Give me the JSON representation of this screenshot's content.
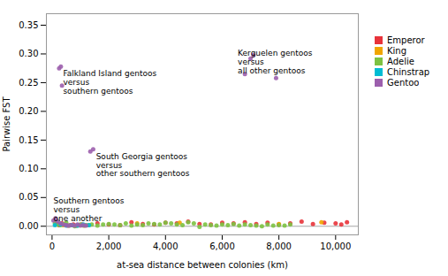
{
  "chart_data": {
    "type": "scatter",
    "xlabel": "at-sea distance between colonies (km)",
    "ylabel": "Pairwise FST",
    "xlim": [
      -200,
      10800
    ],
    "ylim": [
      -0.015,
      0.37
    ],
    "xticks": [
      0,
      {
        "value": 2000,
        "label": "2,000"
      },
      {
        "value": 4000,
        "label": "4,000"
      },
      {
        "value": 6000,
        "label": "6,000"
      },
      {
        "value": 8000,
        "label": "8,000"
      },
      {
        "value": 10000,
        "label": "10,000"
      }
    ],
    "yticks": [
      {
        "value": 0,
        "label": "0.00"
      },
      0.05,
      {
        "value": 0.1,
        "label": "0.10"
      },
      0.15,
      {
        "value": 0.2,
        "label": "0.20"
      },
      0.25,
      {
        "value": 0.3,
        "label": "0.30"
      },
      0.35
    ],
    "legend": "right",
    "series": [
      {
        "name": "Emperor",
        "color": "#e8333a",
        "x": [
          150,
          250,
          350,
          450,
          550,
          650,
          750,
          850,
          950,
          1050,
          1150,
          1600,
          2000,
          2400,
          2800,
          3200,
          3600,
          4000,
          4400,
          4800,
          5200,
          5600,
          6000,
          6400,
          6800,
          7200,
          7600,
          8000,
          8400,
          8800,
          9200,
          9600,
          10000,
          10200,
          10400
        ],
        "values": [
          0.004,
          0.002,
          0.005,
          0.003,
          0.001,
          0.002,
          0.003,
          0.001,
          0.002,
          0.003,
          0.001,
          0.005,
          0.003,
          0.002,
          0.007,
          0.004,
          0.003,
          0.006,
          0.005,
          0.008,
          0.004,
          0.003,
          0.006,
          0.005,
          0.007,
          0.004,
          0.006,
          0.003,
          0.005,
          0.008,
          0.004,
          0.006,
          0.005,
          0.003,
          0.007
        ]
      },
      {
        "name": "King",
        "color": "#f0a500",
        "x": [
          200,
          400,
          3000,
          4500,
          8000,
          9500
        ],
        "values": [
          0.003,
          0.002,
          0.005,
          0.006,
          0.004,
          0.007
        ]
      },
      {
        "name": "Adelie",
        "color": "#7dc242",
        "x": [
          100,
          200,
          300,
          400,
          500,
          600,
          700,
          800,
          900,
          1000,
          1100,
          1200,
          1300,
          1400,
          1600,
          1800,
          2000,
          2200,
          2400,
          2600,
          2800,
          3000,
          3200,
          3400,
          3600,
          3800,
          4000,
          4200,
          4400,
          4600,
          4800,
          5000,
          5200,
          5400,
          5600,
          5800,
          6000,
          6200,
          6400,
          6600,
          6800,
          7000,
          7200,
          7400,
          7600,
          7800,
          8000,
          8200,
          8400
        ],
        "values": [
          0.005,
          0.003,
          0.002,
          0.004,
          0.006,
          0.001,
          0.002,
          0.0,
          0.001,
          0.003,
          0.001,
          0.002,
          0.002,
          0.003,
          0.001,
          0.003,
          0.004,
          0.003,
          0.002,
          0.005,
          0.001,
          0.003,
          0.002,
          0.005,
          0.004,
          0.003,
          0.006,
          0.005,
          0.003,
          0.002,
          0.007,
          0.005,
          -0.001,
          0.003,
          0.002,
          0.001,
          0.003,
          0.002,
          0.004,
          0.001,
          0.003,
          0.002,
          0.001,
          0.0,
          0.003,
          0.001,
          0.002,
          0.001,
          0.003
        ]
      },
      {
        "name": "Chinstrap",
        "color": "#00bcd4",
        "x": [
          100,
          300,
          500,
          700,
          900,
          1100,
          1300
        ],
        "values": [
          0.002,
          0.003,
          0.001,
          0.002,
          0.001,
          0.003,
          0.002
        ]
      },
      {
        "name": "Gentoo",
        "color": "#9c5fad",
        "x": [
          50,
          120,
          200,
          300,
          400,
          500,
          600,
          700,
          800,
          900,
          1000,
          1100,
          1200,
          250,
          310,
          350,
          1350,
          1450,
          6800,
          7000,
          7100,
          7900
        ],
        "values": [
          0.01,
          0.014,
          0.008,
          0.005,
          0.003,
          0.002,
          0.001,
          0.002,
          0.001,
          0.003,
          0.001,
          0.002,
          0.001,
          0.275,
          0.278,
          0.245,
          0.13,
          0.134,
          0.265,
          0.292,
          0.298,
          0.258
        ]
      }
    ],
    "annotations": [
      {
        "text": "Falkland Island gentoos\nversus\nsouthern gentoos",
        "x": 390,
        "y": 0.272
      },
      {
        "text": "South Georgia gentoos\nversus\nother southern gentoos",
        "x": 1550,
        "y": 0.128
      },
      {
        "text": "Southern gentoos\nversus\none another",
        "x": 50,
        "y": 0.05
      },
      {
        "text": "Kerguelen gentoos\nversus\nall other gentoos",
        "x": 6550,
        "y": 0.308
      }
    ]
  }
}
